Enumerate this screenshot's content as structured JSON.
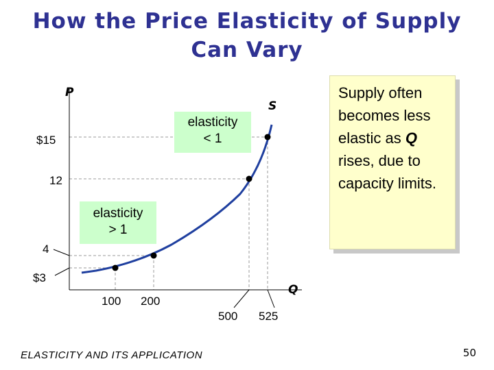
{
  "slide": {
    "title": "How the Price Elasticity of Supply Can Vary",
    "footer": "ELASTICITY AND ITS APPLICATION",
    "page_number": "50"
  },
  "note": {
    "before": "Supply often becomes less elastic as ",
    "emphasis": "Q",
    "after": " rises, due to capacity limits."
  },
  "chart_data": {
    "type": "line",
    "ylabel": "P",
    "xlabel": "Q",
    "series": [
      {
        "name": "S",
        "color": "#1f3f9f",
        "points": [
          {
            "q": 100,
            "p": 3
          },
          {
            "q": 200,
            "p": 4
          },
          {
            "q": 500,
            "p": 12
          },
          {
            "q": 525,
            "p": 15
          }
        ]
      }
    ],
    "x_ticks": [
      "100",
      "200",
      "500",
      "525"
    ],
    "y_ticks": [
      "$3",
      "4",
      "12",
      "$15"
    ],
    "annotations": [
      {
        "id": "inelastic",
        "lines": [
          "elasticity",
          "< 1"
        ],
        "color": "#ccffcc"
      },
      {
        "id": "elastic",
        "lines": [
          "elasticity",
          "> 1"
        ],
        "color": "#ccffcc"
      }
    ],
    "grid": false,
    "dashed_guides": true
  }
}
